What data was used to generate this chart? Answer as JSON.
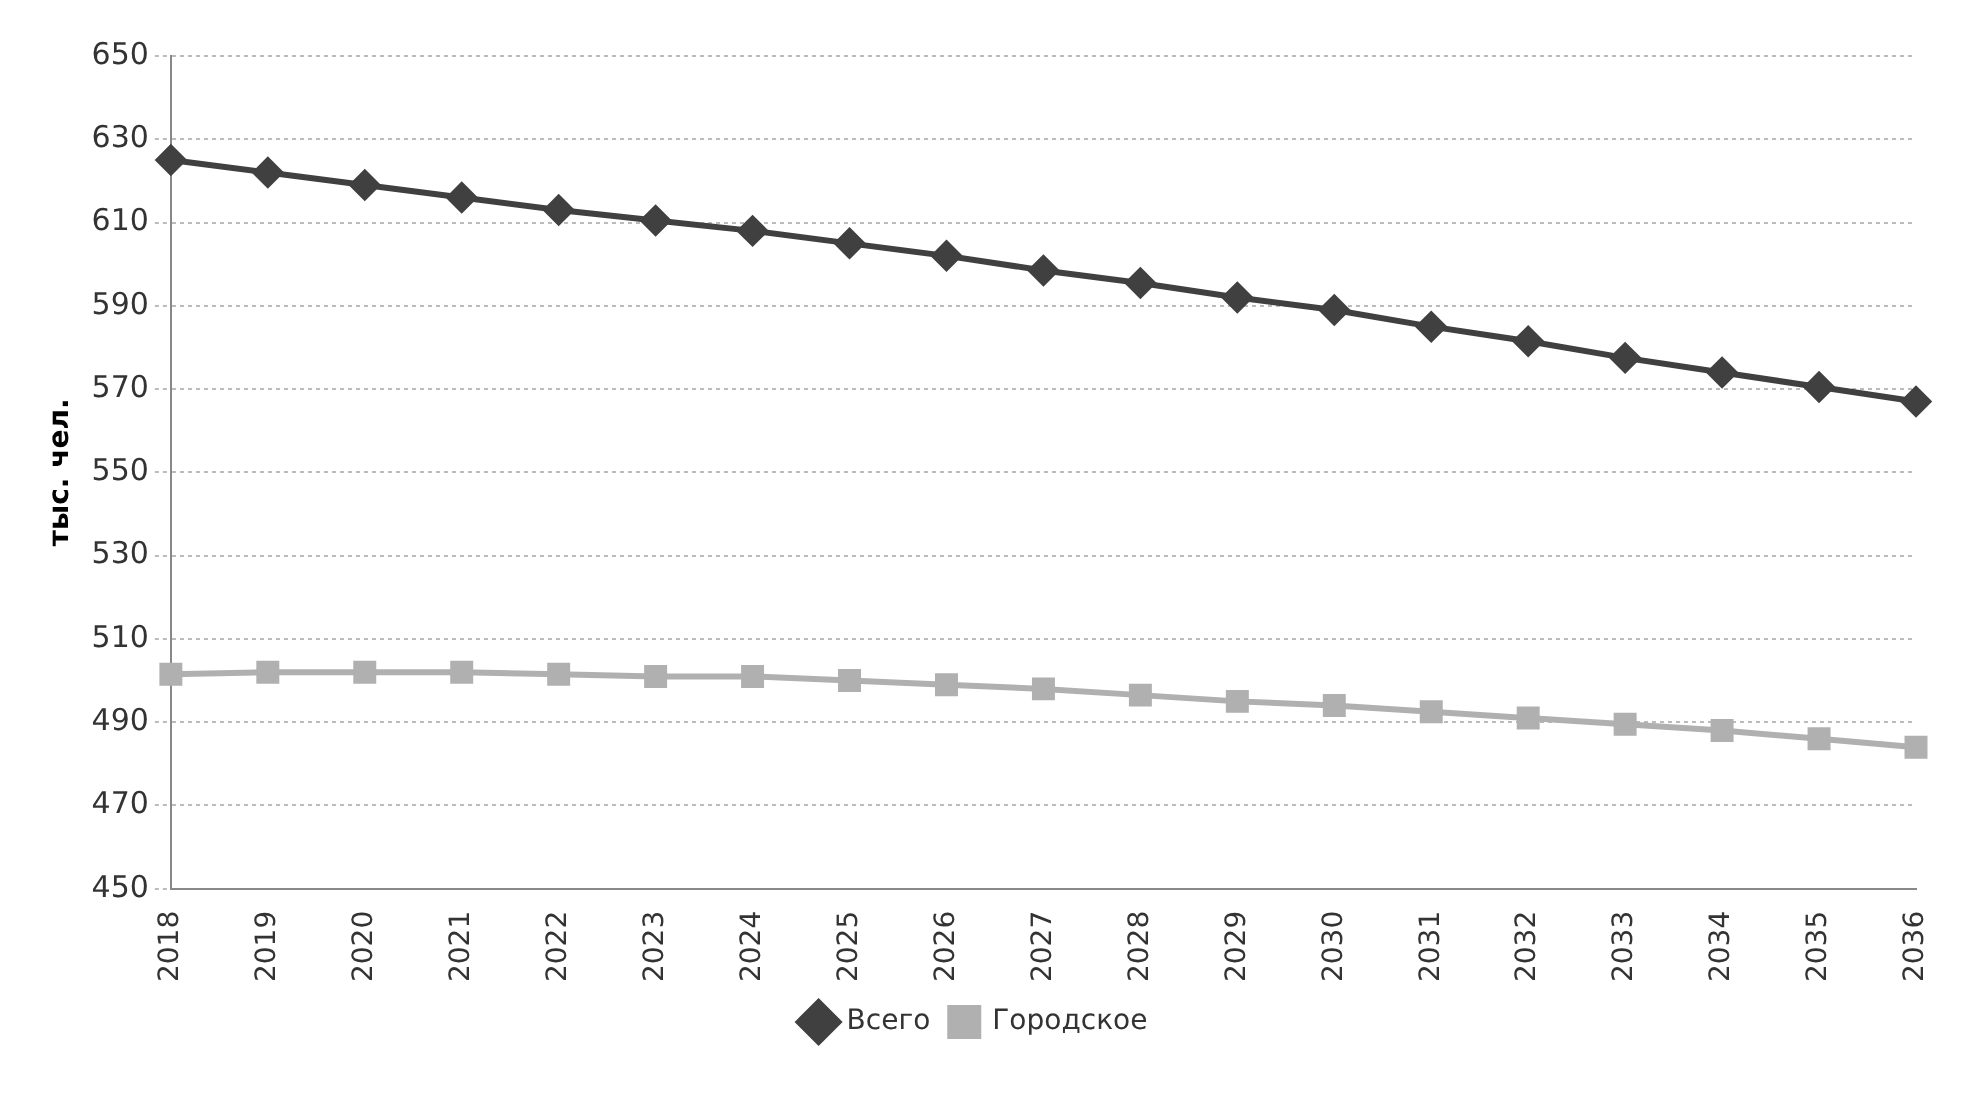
{
  "chart_data": {
    "type": "line",
    "ylabel": "тыс. чел.",
    "categories": [
      "2018",
      "2019",
      "2020",
      "2021",
      "2022",
      "2023",
      "2024",
      "2025",
      "2026",
      "2027",
      "2028",
      "2029",
      "2030",
      "2031",
      "2032",
      "2033",
      "2034",
      "2035",
      "2036"
    ],
    "series": [
      {
        "name": "Всего",
        "color": "#404040",
        "marker": "diamond",
        "values": [
          625,
          622,
          619,
          616,
          613,
          610.5,
          608,
          605,
          602,
          598.5,
          595.5,
          592,
          589,
          585,
          581.5,
          577.5,
          574,
          570.5,
          567
        ]
      },
      {
        "name": "Городское",
        "color": "#b0b0b0",
        "marker": "square",
        "values": [
          501.5,
          502,
          502,
          502,
          501.5,
          501,
          501,
          500,
          499,
          498,
          496.5,
          495,
          494,
          492.5,
          491,
          489.5,
          488,
          486,
          484
        ]
      }
    ],
    "ylim": [
      450,
      650
    ],
    "yticks": [
      450,
      470,
      490,
      510,
      530,
      550,
      570,
      590,
      610,
      630,
      650
    ],
    "grid": "y",
    "legend": "bottom"
  }
}
